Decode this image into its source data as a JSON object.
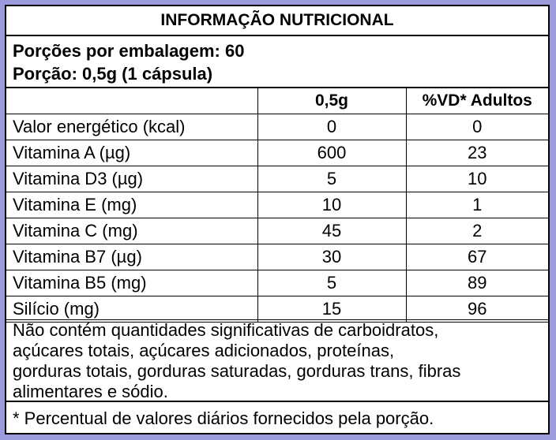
{
  "title": "INFORMAÇÃO NUTRICIONAL",
  "servings_per_package": "Porções por embalagem: 60",
  "serving_size": "Porção: 0,5g (1 cápsula)",
  "columns": {
    "nutrient": "",
    "amount": "0,5g",
    "dv": "%VD* Adultos"
  },
  "rows": [
    {
      "name": "Valor energético (kcal)",
      "amount": "0",
      "dv": "0"
    },
    {
      "name": "Vitamina A (µg)",
      "amount": "600",
      "dv": "23"
    },
    {
      "name": "Vitamina D3 (µg)",
      "amount": "5",
      "dv": "10"
    },
    {
      "name": "Vitamina E (mg)",
      "amount": "10",
      "dv": "1"
    },
    {
      "name": "Vitamina C (mg)",
      "amount": "45",
      "dv": "2"
    },
    {
      "name": "Vitamina B7 (µg)",
      "amount": "30",
      "dv": "67"
    },
    {
      "name": "Vitamina B5 (mg)",
      "amount": "5",
      "dv": "89"
    },
    {
      "name": "Silício (mg)",
      "amount": "15",
      "dv": "96"
    }
  ],
  "not_significant_lines": [
    "Não contém quantidades significativas de carboidratos,",
    "açúcares totais, açúcares adicionados, proteínas,",
    "gorduras totais, gorduras saturadas, gorduras trans, fibras",
    "alimentares e sódio."
  ],
  "dv_footnote": "* Percentual de valores diários fornecidos pela porção.",
  "colors": {
    "background": "#9c9cdc",
    "panel": "#ffffff",
    "border": "#000000"
  }
}
